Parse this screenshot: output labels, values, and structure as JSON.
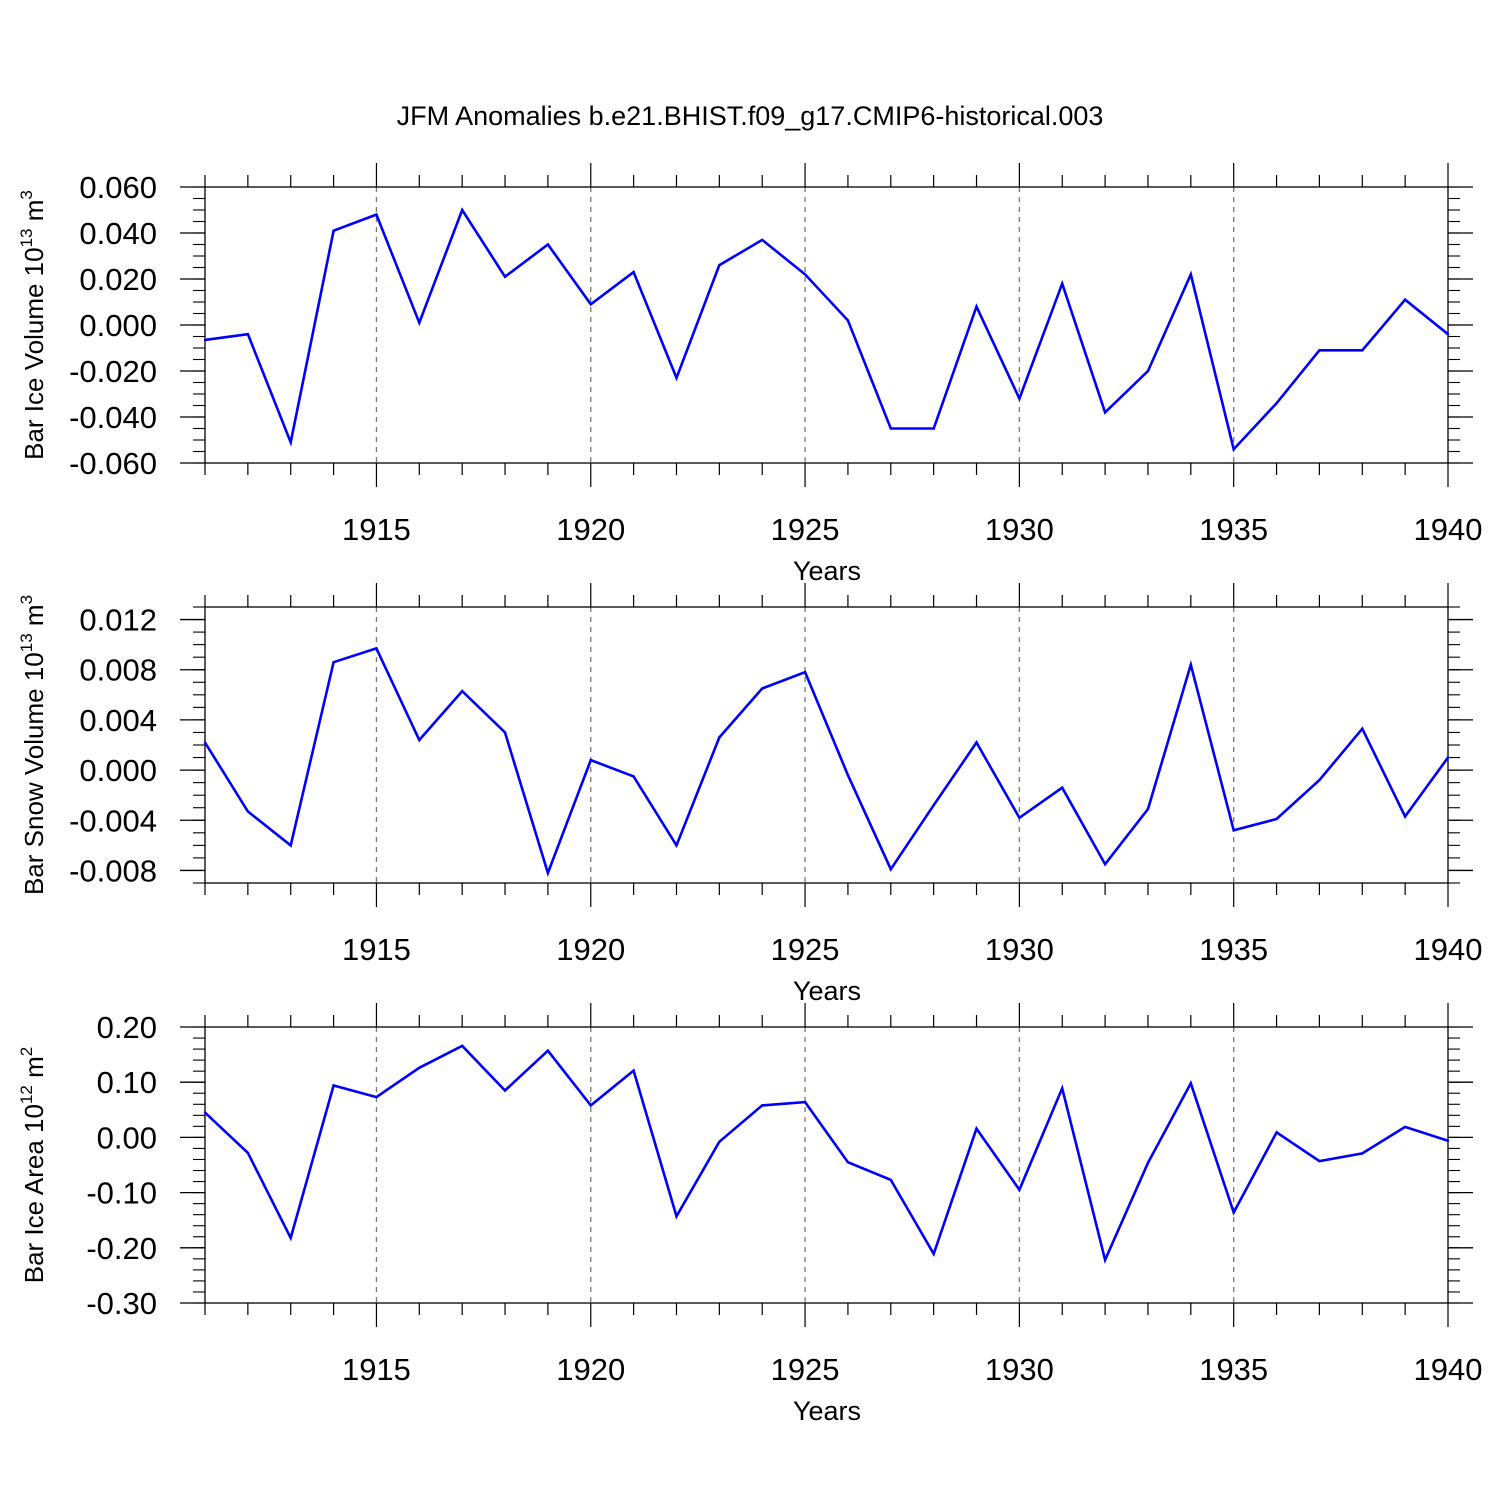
{
  "title": "JFM Anomalies b.e21.BHIST.f09_g17.CMIP6-historical.003",
  "line_color": "#0000ff",
  "chart_data": [
    {
      "type": "line",
      "ylabel": "Bar Ice Volume 10",
      "ylabel_exp": "13",
      "ylabel_unit": " m",
      "ylabel_unit_exp": "3",
      "xlabel": "Years",
      "xlim": [
        1911,
        1940
      ],
      "ylim": [
        -0.06,
        0.06
      ],
      "yticks": [
        -0.06,
        -0.04,
        -0.02,
        0.0,
        0.02,
        0.04,
        0.06
      ],
      "ytick_labels": [
        "-0.060",
        "-0.040",
        "-0.020",
        "0.000",
        "0.020",
        "0.040",
        "0.060"
      ],
      "yminor_step": 0.005,
      "xticks": [
        1915,
        1920,
        1925,
        1930,
        1935,
        1940
      ],
      "xtick_labels": [
        "1915",
        "1920",
        "1925",
        "1930",
        "1935",
        "1940"
      ],
      "x": [
        1911,
        1912,
        1913,
        1914,
        1915,
        1916,
        1917,
        1918,
        1919,
        1920,
        1921,
        1922,
        1923,
        1924,
        1925,
        1926,
        1927,
        1928,
        1929,
        1930,
        1931,
        1932,
        1933,
        1934,
        1935,
        1936,
        1937,
        1938,
        1939,
        1940
      ],
      "values": [
        -0.0065,
        -0.004,
        -0.051,
        0.041,
        0.048,
        0.001,
        0.05,
        0.021,
        0.035,
        0.009,
        0.023,
        -0.023,
        0.026,
        0.037,
        0.022,
        0.002,
        -0.045,
        -0.045,
        0.008,
        -0.032,
        0.018,
        -0.038,
        -0.02,
        0.022,
        -0.054,
        -0.034,
        -0.011,
        -0.011,
        0.011,
        -0.004
      ]
    },
    {
      "type": "line",
      "ylabel": "Bar Snow Volume 10",
      "ylabel_exp": "13",
      "ylabel_unit": " m",
      "ylabel_unit_exp": "3",
      "xlabel": "Years",
      "xlim": [
        1911,
        1940
      ],
      "ylim": [
        -0.009,
        0.013
      ],
      "yticks": [
        -0.008,
        -0.004,
        0.0,
        0.004,
        0.008,
        0.012
      ],
      "ytick_labels": [
        "-0.008",
        "-0.004",
        "0.000",
        "0.004",
        "0.008",
        "0.012"
      ],
      "yminor_step": 0.001,
      "xticks": [
        1915,
        1920,
        1925,
        1930,
        1935,
        1940
      ],
      "xtick_labels": [
        "1915",
        "1920",
        "1925",
        "1930",
        "1935",
        "1940"
      ],
      "x": [
        1911,
        1912,
        1913,
        1914,
        1915,
        1916,
        1917,
        1918,
        1919,
        1920,
        1921,
        1922,
        1923,
        1924,
        1925,
        1926,
        1927,
        1928,
        1929,
        1930,
        1931,
        1932,
        1933,
        1934,
        1935,
        1936,
        1937,
        1938,
        1939,
        1940
      ],
      "values": [
        0.0022,
        -0.0033,
        -0.006,
        0.0086,
        0.0097,
        0.0024,
        0.0063,
        0.003,
        -0.0082,
        0.0008,
        -0.0005,
        -0.006,
        0.0026,
        0.0065,
        0.0078,
        -0.0004,
        -0.0079,
        -0.0028,
        0.0022,
        -0.0038,
        -0.0014,
        -0.0075,
        -0.0031,
        0.0084,
        -0.0048,
        -0.0039,
        -0.0008,
        0.0033,
        -0.0037,
        0.001
      ]
    },
    {
      "type": "line",
      "ylabel": "Bar Ice Area 10",
      "ylabel_exp": "12",
      "ylabel_unit": " m",
      "ylabel_unit_exp": "2",
      "xlabel": "Years",
      "xlim": [
        1911,
        1940
      ],
      "ylim": [
        -0.3,
        0.2
      ],
      "yticks": [
        -0.3,
        -0.2,
        -0.1,
        0.0,
        0.1,
        0.2
      ],
      "ytick_labels": [
        "-0.30",
        "-0.20",
        "-0.10",
        "0.00",
        "0.10",
        "0.20"
      ],
      "yminor_step": 0.02,
      "xticks": [
        1915,
        1920,
        1925,
        1930,
        1935,
        1940
      ],
      "xtick_labels": [
        "1915",
        "1920",
        "1925",
        "1930",
        "1935",
        "1940"
      ],
      "x": [
        1911,
        1912,
        1913,
        1914,
        1915,
        1916,
        1917,
        1918,
        1919,
        1920,
        1921,
        1922,
        1923,
        1924,
        1925,
        1926,
        1927,
        1928,
        1929,
        1930,
        1931,
        1932,
        1933,
        1934,
        1935,
        1936,
        1937,
        1938,
        1939,
        1940
      ],
      "values": [
        0.045,
        -0.028,
        -0.182,
        0.094,
        0.073,
        0.126,
        0.166,
        0.085,
        0.157,
        0.058,
        0.121,
        -0.143,
        -0.008,
        0.058,
        0.064,
        -0.045,
        -0.077,
        -0.211,
        0.016,
        -0.095,
        0.089,
        -0.222,
        -0.046,
        0.098,
        -0.136,
        0.009,
        -0.043,
        -0.029,
        0.019,
        -0.006
      ]
    }
  ]
}
